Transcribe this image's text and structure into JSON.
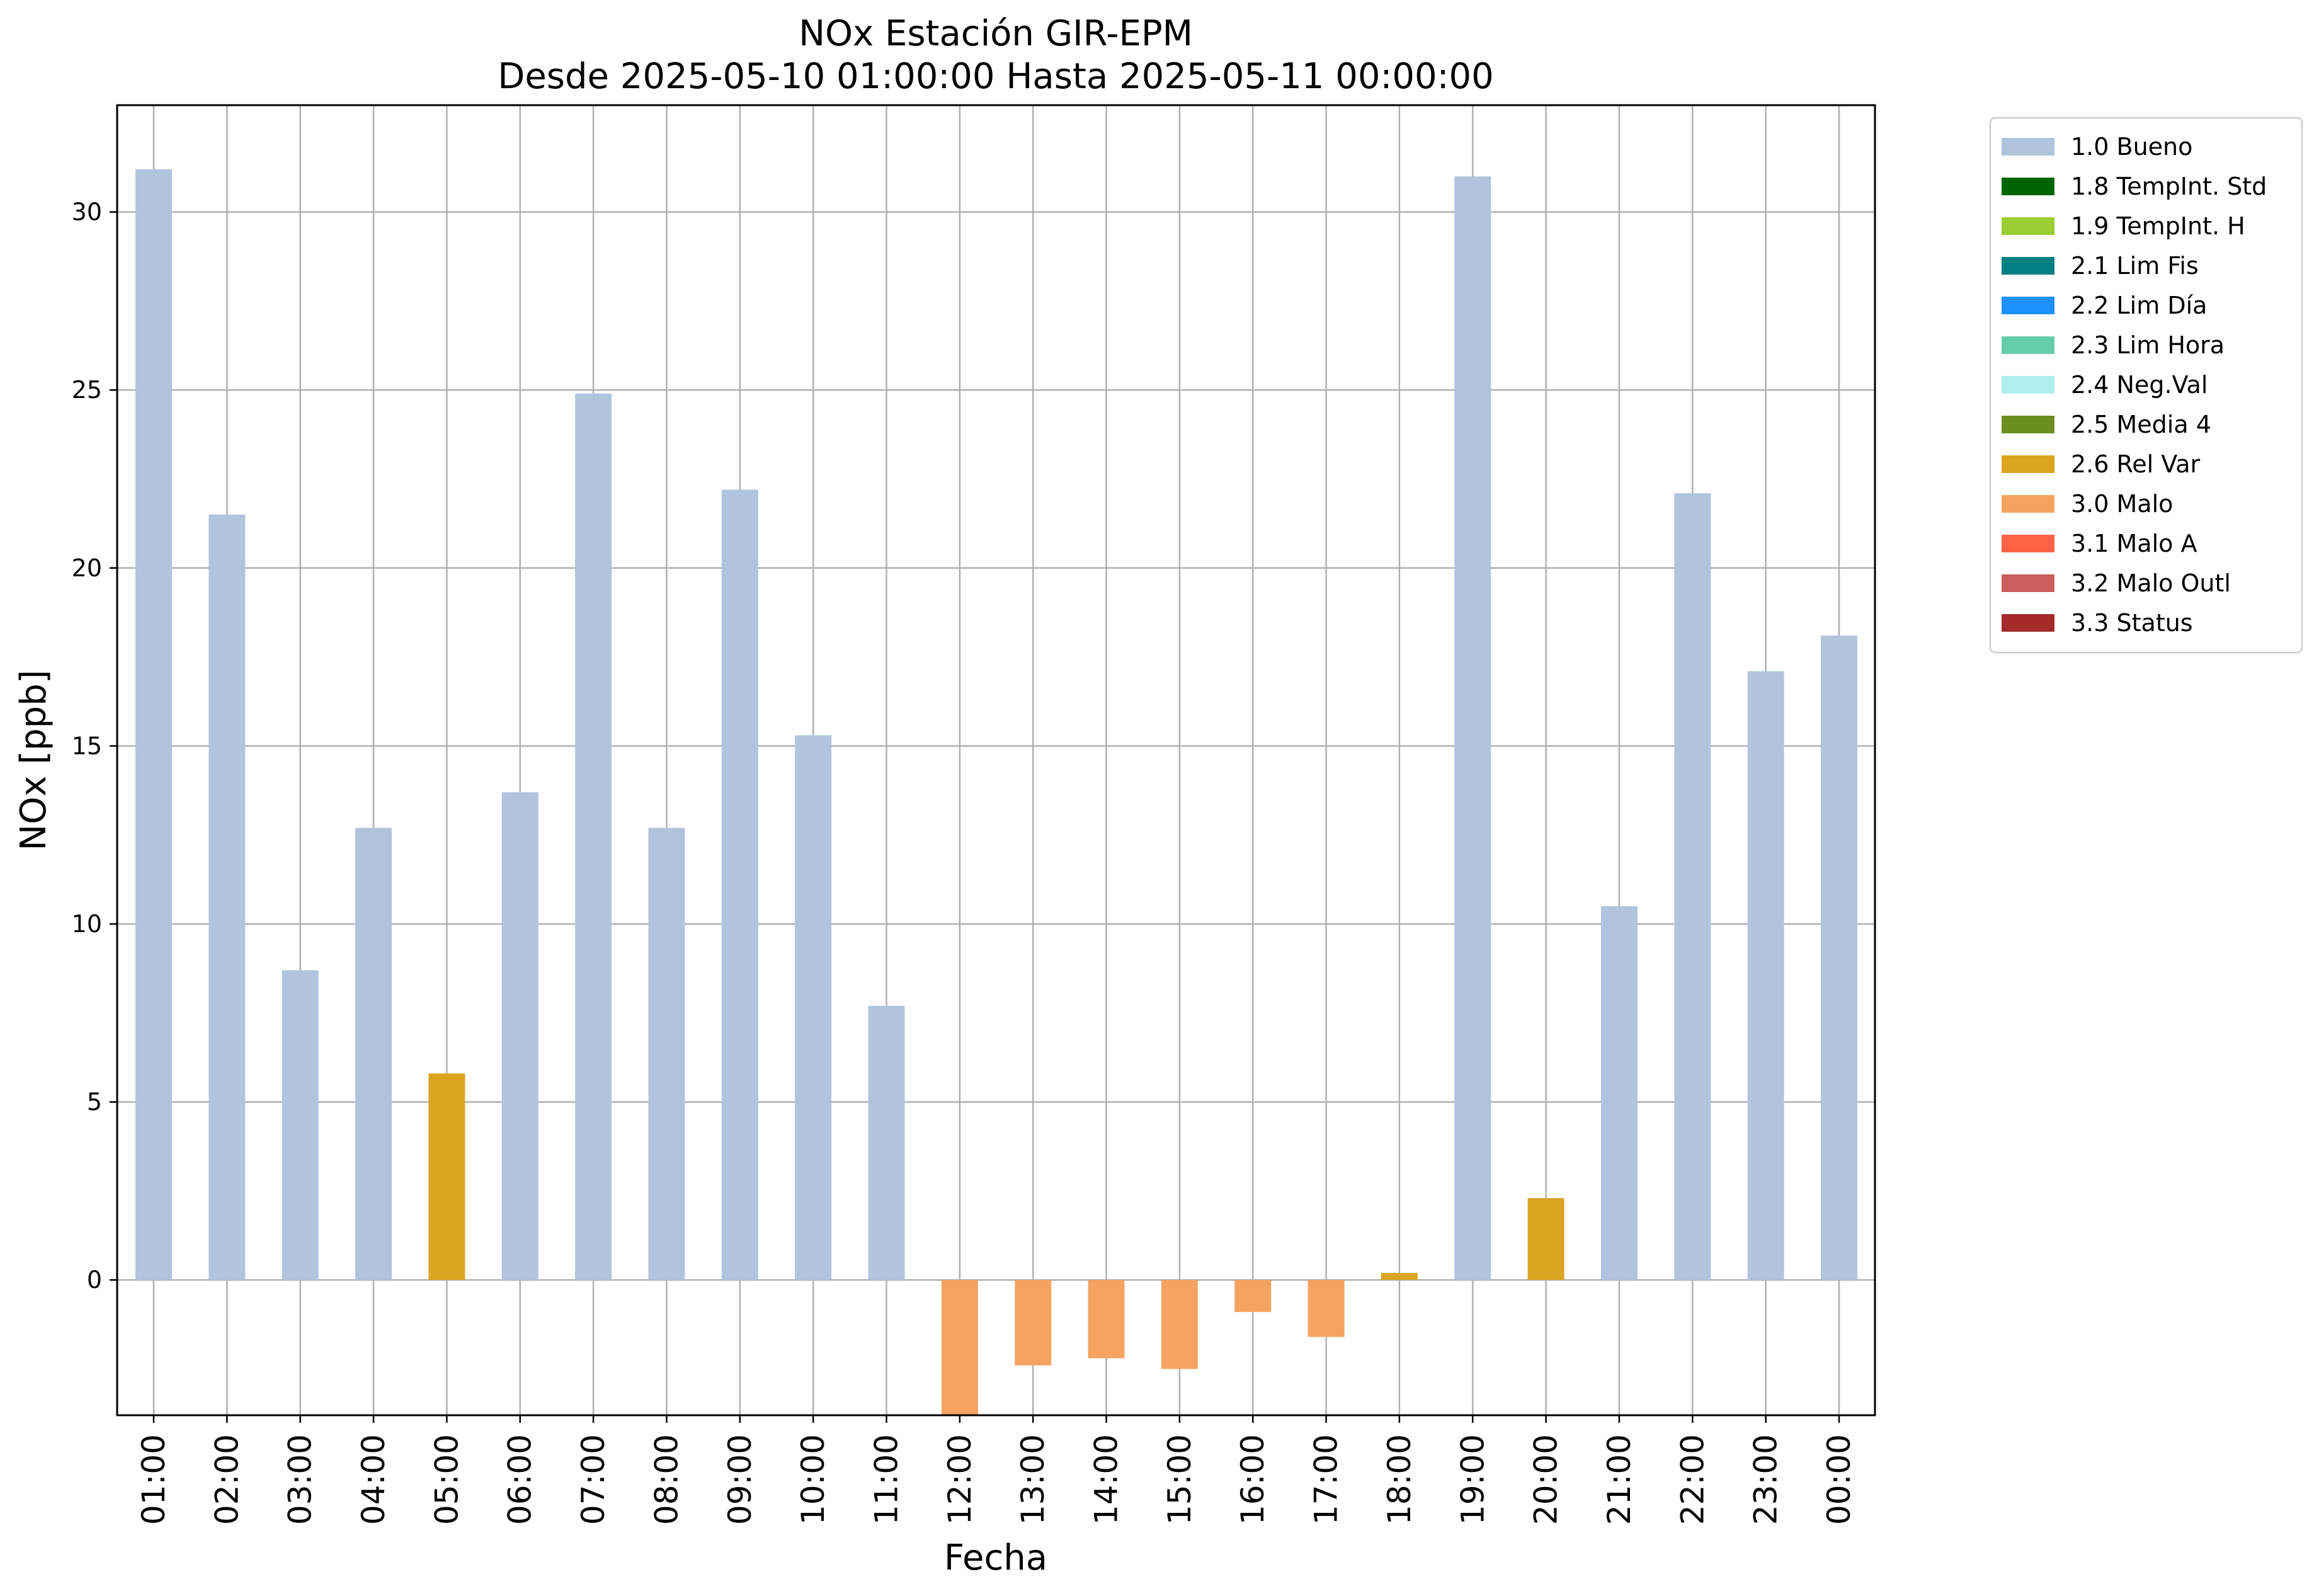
{
  "chart_data": {
    "type": "bar",
    "title": "NOx Estación GIR-EPM",
    "subtitle": "Desde 2025-05-10 01:00:00 Hasta 2025-05-11 00:00:00",
    "xlabel": "Fecha",
    "ylabel": "NOx [ppb]",
    "ylim": [
      -3.8,
      33
    ],
    "yticks": [
      0,
      5,
      10,
      15,
      20,
      25,
      30
    ],
    "grid": true,
    "legend_position": "outside-top-right",
    "categories": [
      "01:00",
      "02:00",
      "03:00",
      "04:00",
      "05:00",
      "06:00",
      "07:00",
      "08:00",
      "09:00",
      "10:00",
      "11:00",
      "12:00",
      "13:00",
      "14:00",
      "15:00",
      "16:00",
      "17:00",
      "18:00",
      "19:00",
      "20:00",
      "21:00",
      "22:00",
      "23:00",
      "00:00"
    ],
    "values": [
      31.2,
      21.5,
      8.7,
      12.7,
      5.8,
      13.7,
      24.9,
      12.7,
      22.2,
      15.3,
      7.7,
      -3.8,
      -2.4,
      -2.2,
      -2.5,
      -0.9,
      -1.6,
      0.2,
      31.0,
      2.3,
      10.5,
      22.1,
      17.1,
      18.1
    ],
    "flags": [
      "1.0 Bueno",
      "1.0 Bueno",
      "1.0 Bueno",
      "1.0 Bueno",
      "2.6 Rel Var",
      "1.0 Bueno",
      "1.0 Bueno",
      "1.0 Bueno",
      "1.0 Bueno",
      "1.0 Bueno",
      "1.0 Bueno",
      "3.0 Malo",
      "3.0 Malo",
      "3.0 Malo",
      "3.0 Malo",
      "3.0 Malo",
      "3.0 Malo",
      "2.6 Rel Var",
      "1.0 Bueno",
      "2.6 Rel Var",
      "1.0 Bueno",
      "1.0 Bueno",
      "1.0 Bueno",
      "1.0 Bueno"
    ],
    "legend": [
      {
        "label": "1.0 Bueno",
        "color": "#b0c4de"
      },
      {
        "label": "1.8 TempInt. Std",
        "color": "#006400"
      },
      {
        "label": "1.9 TempInt. H",
        "color": "#9acd32"
      },
      {
        "label": "2.1 Lim Fis",
        "color": "#008080"
      },
      {
        "label": "2.2 Lim Día",
        "color": "#1e90ff"
      },
      {
        "label": "2.3 Lim Hora",
        "color": "#66cdaa"
      },
      {
        "label": "2.4 Neg.Val",
        "color": "#afeeee"
      },
      {
        "label": "2.5 Media 4",
        "color": "#6b8e23"
      },
      {
        "label": "2.6 Rel Var",
        "color": "#daa520"
      },
      {
        "label": "3.0 Malo",
        "color": "#f4a460"
      },
      {
        "label": "3.1 Malo A",
        "color": "#ff6347"
      },
      {
        "label": "3.2 Malo Outl",
        "color": "#cd5c5c"
      },
      {
        "label": "3.3 Status",
        "color": "#a52a2a"
      }
    ]
  }
}
